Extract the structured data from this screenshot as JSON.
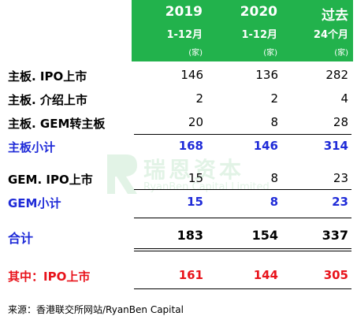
{
  "header": {
    "col1": {
      "year": "2019",
      "span": "1-12月",
      "unit": "(家)"
    },
    "col2": {
      "year": "2020",
      "span": "1-12月",
      "unit": "(家)"
    },
    "col3": {
      "year": "过去",
      "span": "24个月",
      "unit": "(家)"
    }
  },
  "rows": [
    {
      "label": "主板. IPO上市",
      "v1": "146",
      "v2": "136",
      "v3": "282"
    },
    {
      "label": "主板. 介绍上市",
      "v1": "2",
      "v2": "2",
      "v3": "4"
    },
    {
      "label": "主板. GEM转主板",
      "v1": "20",
      "v2": "8",
      "v3": "28"
    },
    {
      "label": "主板小计",
      "v1": "168",
      "v2": "146",
      "v3": "314"
    },
    {
      "label": "GEM. IPO上市",
      "v1": "15",
      "v2": "8",
      "v3": "23"
    },
    {
      "label": "GEM小计",
      "v1": "15",
      "v2": "8",
      "v3": "23"
    },
    {
      "label": "合计",
      "v1": "183",
      "v2": "154",
      "v3": "337"
    },
    {
      "label": "其中：IPO上市",
      "v1": "161",
      "v2": "144",
      "v3": "305"
    }
  ],
  "watermark": {
    "cn": "瑞恩资本",
    "en": "RyanBen Capital Limited"
  },
  "source": "来源：香港联交所网站/RyanBen Capital",
  "colors": {
    "header_bg": "#22b24c",
    "subtotal": "#1f2bd8",
    "highlight": "#e8131b"
  }
}
